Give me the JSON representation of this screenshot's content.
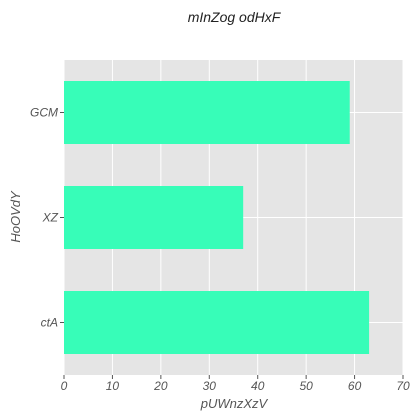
{
  "chart_data": {
    "type": "bar",
    "orientation": "horizontal",
    "title": "mInZog odHxF",
    "xlabel": "pUWnzXzV",
    "ylabel": "HoOVdY",
    "categories": [
      "GCM",
      "XZ",
      "ctA"
    ],
    "values": [
      59,
      37,
      63
    ],
    "xlim": [
      0,
      70
    ],
    "xticks": [
      0,
      10,
      20,
      30,
      40,
      50,
      60,
      70
    ],
    "grid": true,
    "legend": "none"
  },
  "colors": {
    "bar": "#37fdb8",
    "plot_background": "#e5e5e5",
    "grid": "#ffffff",
    "text": "#555555"
  }
}
